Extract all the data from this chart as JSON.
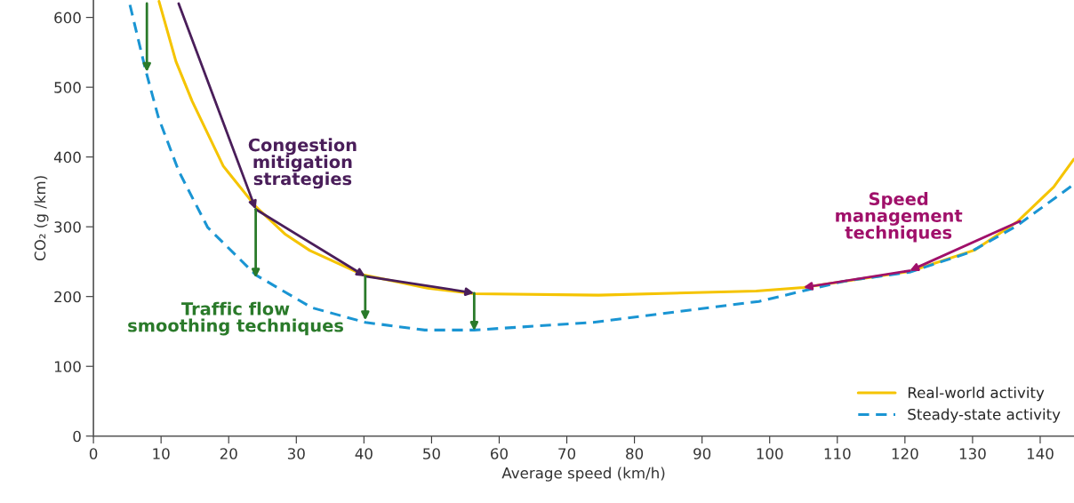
{
  "chart_data": {
    "type": "line",
    "xlabel": "Average speed (km/h)",
    "ylabel": "CO₂ (g /km)",
    "xlim": [
      0,
      145
    ],
    "ylim": [
      0,
      625
    ],
    "xticks": [
      0,
      10,
      20,
      30,
      40,
      50,
      60,
      70,
      80,
      90,
      100,
      110,
      120,
      130,
      140
    ],
    "yticks": [
      0,
      100,
      200,
      300,
      400,
      500,
      600
    ],
    "grid": false,
    "legend": "bottom right",
    "series": [
      {
        "name": "Real-world activity",
        "color": "#f5c400",
        "line_style": "solid",
        "x": [
          9.7,
          12.2,
          14.6,
          19.2,
          24.0,
          28.4,
          32.0,
          39.9,
          49.4,
          56.3,
          74.7,
          98,
          105,
          120.7,
          130.4,
          136.7,
          142,
          145
        ],
        "values": [
          623,
          537,
          480,
          387,
          329,
          289,
          266,
          231,
          212,
          204,
          202,
          208,
          213,
          236,
          267,
          308,
          357,
          397
        ]
      },
      {
        "name": "Steady-state activity",
        "color": "#1a95d3",
        "line_style": "dashed",
        "x": [
          5.4,
          7.7,
          9.6,
          12.6,
          16.9,
          24.0,
          32.3,
          40.2,
          49,
          56.3,
          73.9,
          98.4,
          111,
          120.7,
          129.5,
          136.5,
          145
        ],
        "values": [
          618,
          525,
          457,
          380,
          299,
          231,
          184,
          163,
          152,
          152,
          163,
          193,
          222,
          235,
          263,
          301,
          361
        ]
      }
    ],
    "annotations": [
      {
        "text": "Congestion\nmitigation\nstrategies",
        "x": 24,
        "y": 329
      },
      {
        "text": "Traffic flow\nsmoothing techniques",
        "x": 40.2,
        "y": 163
      },
      {
        "text": "Speed\nmanagement\ntechniques",
        "x": 120.7,
        "y": 236
      }
    ]
  }
}
